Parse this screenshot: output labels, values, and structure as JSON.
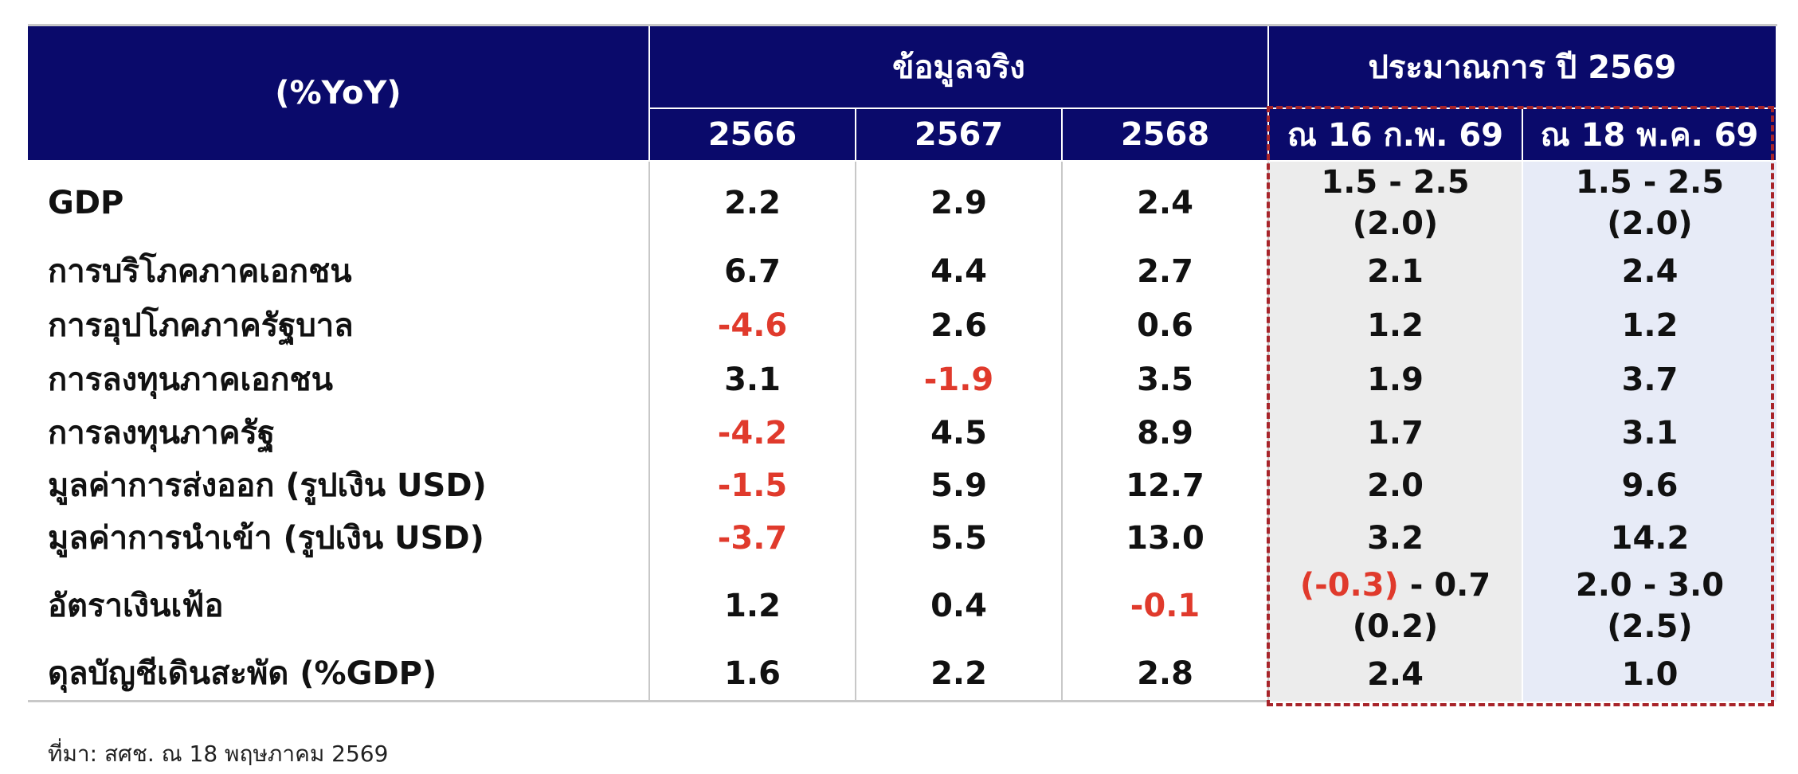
{
  "header": {
    "label": "(%YoY)",
    "actual_group": "ข้อมูลจริง",
    "forecast_group": "ประมาณการ ปี 2569",
    "years": [
      "2566",
      "2567",
      "2568"
    ],
    "forecast_cols": [
      "ณ 16 ก.พ. 69",
      "ณ 18 พ.ค. 69"
    ]
  },
  "rows": [
    {
      "label": "GDP",
      "y2566": "2.2",
      "y2567": "2.9",
      "y2568": "2.4",
      "feb_range": "1.5 - 2.5",
      "feb_mid": "(2.0)",
      "may_range": "1.5 - 2.5",
      "may_mid": "(2.0)"
    },
    {
      "label": "การบริโภคภาคเอกชน",
      "y2566": "6.7",
      "y2567": "4.4",
      "y2568": "2.7",
      "feb": "2.1",
      "may": "2.4"
    },
    {
      "label": "การอุปโภคภาครัฐบาล",
      "y2566": "-4.6",
      "y2567": "2.6",
      "y2568": "0.6",
      "feb": "1.2",
      "may": "1.2"
    },
    {
      "label": "การลงทุนภาคเอกชน",
      "y2566": "3.1",
      "y2567": "-1.9",
      "y2568": "3.5",
      "feb": "1.9",
      "may": "3.7"
    },
    {
      "label": "การลงทุนภาครัฐ",
      "y2566": "-4.2",
      "y2567": "4.5",
      "y2568": "8.9",
      "feb": "1.7",
      "may": "3.1"
    },
    {
      "label": "มูลค่าการส่งออก (รูปเงิน USD)",
      "y2566": "-1.5",
      "y2567": "5.9",
      "y2568": "12.7",
      "feb": "2.0",
      "may": "9.6"
    },
    {
      "label": "มูลค่าการนำเข้า (รูปเงิน USD)",
      "y2566": "-3.7",
      "y2567": "5.5",
      "y2568": "13.0",
      "feb": "3.2",
      "may": "14.2"
    },
    {
      "label": "อัตราเงินเฟ้อ",
      "y2566": "1.2",
      "y2567": "0.4",
      "y2568": "-0.1",
      "feb_low": "(-0.3)",
      "feb_high": " - 0.7",
      "feb_mid": "(0.2)",
      "may_range": "2.0 - 3.0",
      "may_mid": "(2.5)"
    },
    {
      "label": "ดุลบัญชีเดินสะพัด (%GDP)",
      "y2566": "1.6",
      "y2567": "2.2",
      "y2568": "2.8",
      "feb": "2.4",
      "may": "1.0"
    }
  ],
  "source": "ที่มา: สศช. ณ 18 พฤษภาคม 2569",
  "colors": {
    "header_bg": "#0a0a6b",
    "negative": "#e03a2c",
    "forecast_border": "#a8242a",
    "feb_bg": "#ececec",
    "may_bg": "#e7ebf7"
  }
}
